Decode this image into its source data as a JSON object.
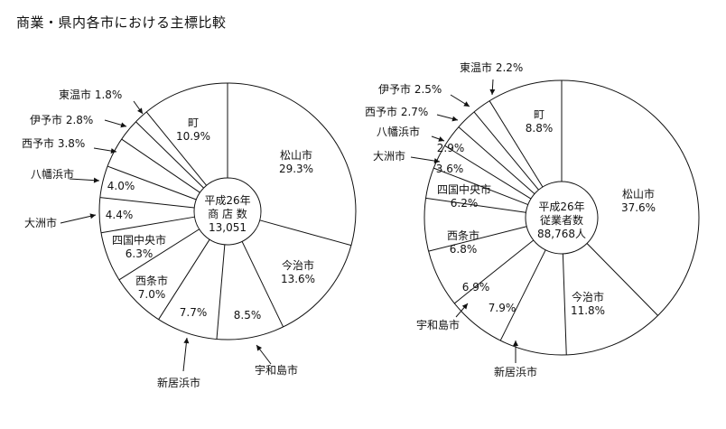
{
  "title": "商業・県内各市における主標比較",
  "chart_data": [
    {
      "type": "pie",
      "center_label": [
        "平成26年",
        "商 店 数",
        "13,051"
      ],
      "slices": [
        {
          "name": "松山市",
          "value": 29.3,
          "value_label": "29.3%"
        },
        {
          "name": "今治市",
          "value": 13.6,
          "value_label": "13.6%"
        },
        {
          "name": "宇和島市",
          "value": 8.5,
          "value_label": "8.5%"
        },
        {
          "name": "新居浜市",
          "value": 7.7,
          "value_label": "7.7%"
        },
        {
          "name": "西条市",
          "value": 7.0,
          "value_label": "7.0%"
        },
        {
          "name": "四国中央市",
          "value": 6.3,
          "value_label": "6.3%"
        },
        {
          "name": "大洲市",
          "value": 4.4,
          "value_label": "4.4%"
        },
        {
          "name": "八幡浜市",
          "value": 4.0,
          "value_label": "4.0%"
        },
        {
          "name": "西予市",
          "value": 3.8,
          "value_label": "3.8%"
        },
        {
          "name": "伊予市",
          "value": 2.8,
          "value_label": "2.8%"
        },
        {
          "name": "東温市",
          "value": 1.8,
          "value_label": "1.8%"
        },
        {
          "name": "町",
          "value": 10.9,
          "value_label": "10.9%"
        }
      ]
    },
    {
      "type": "pie",
      "center_label": [
        "平成26年",
        "従業者数",
        "88,768人"
      ],
      "slices": [
        {
          "name": "松山市",
          "value": 37.6,
          "value_label": "37.6%"
        },
        {
          "name": "今治市",
          "value": 11.8,
          "value_label": "11.8%"
        },
        {
          "name": "新居浜市",
          "value": 7.9,
          "value_label": "7.9%"
        },
        {
          "name": "宇和島市",
          "value": 6.9,
          "value_label": "6.9%"
        },
        {
          "name": "西条市",
          "value": 6.8,
          "value_label": "6.8%"
        },
        {
          "name": "四国中央市",
          "value": 6.2,
          "value_label": "6.2%"
        },
        {
          "name": "大洲市",
          "value": 3.6,
          "value_label": "3.6%"
        },
        {
          "name": "八幡浜市",
          "value": 2.9,
          "value_label": "2.9%"
        },
        {
          "name": "西予市",
          "value": 2.7,
          "value_label": "2.7%"
        },
        {
          "name": "伊予市",
          "value": 2.5,
          "value_label": "2.5%"
        },
        {
          "name": "東温市",
          "value": 2.2,
          "value_label": "2.2%"
        },
        {
          "name": "町",
          "value": 8.8,
          "value_label": "8.8%"
        }
      ]
    }
  ]
}
